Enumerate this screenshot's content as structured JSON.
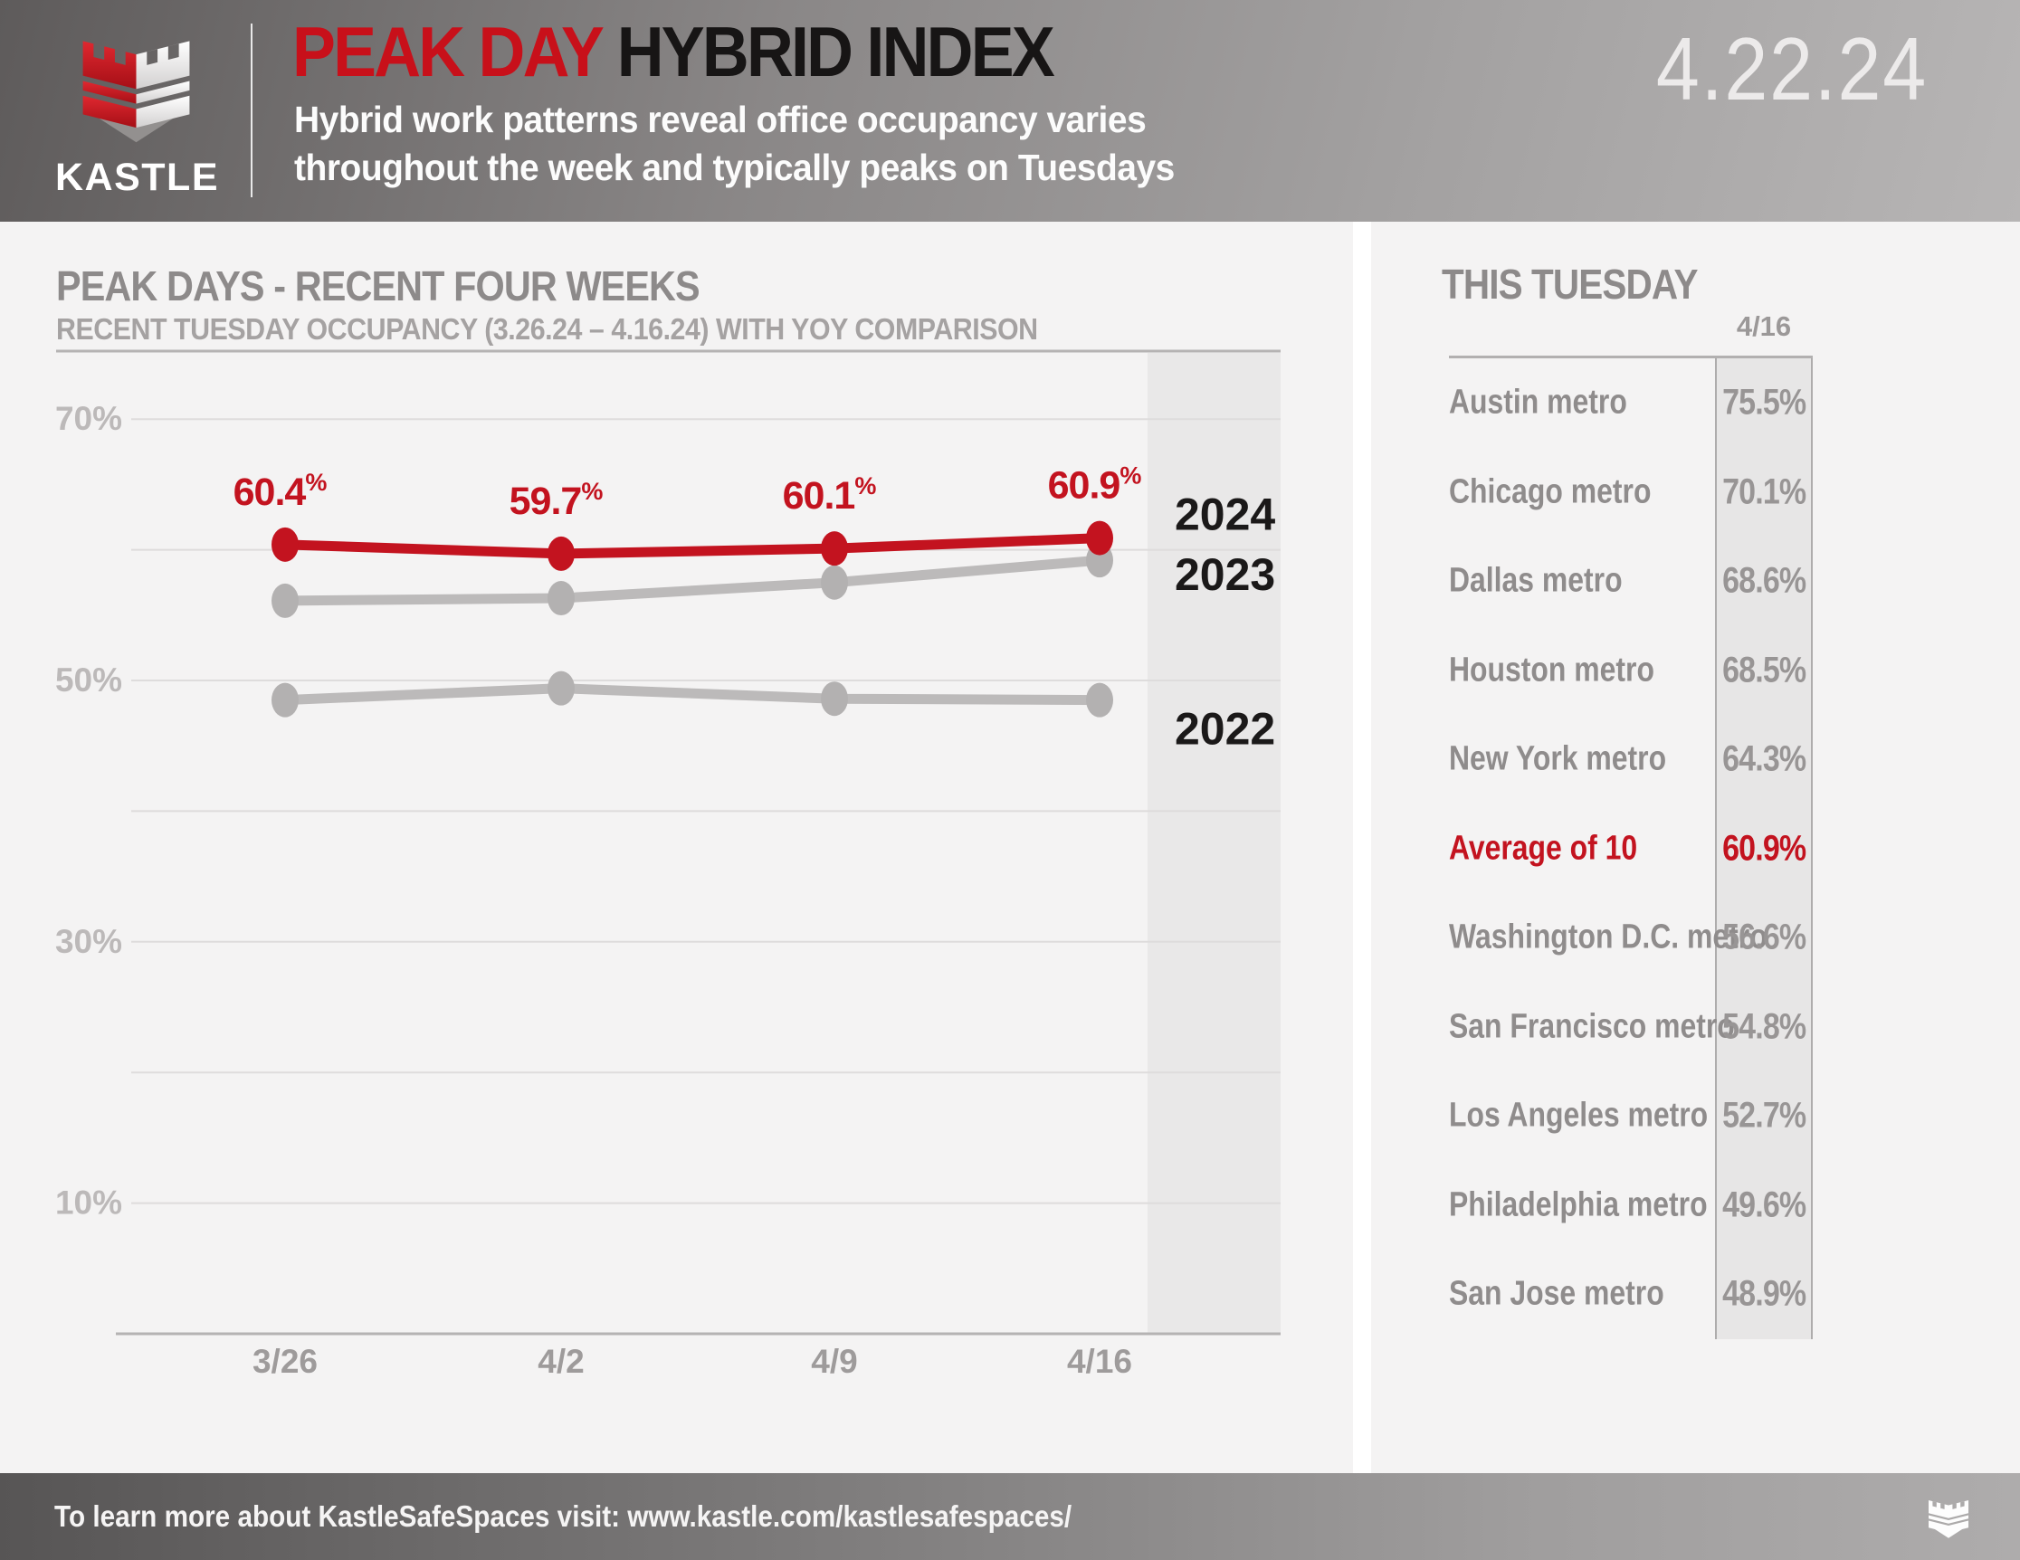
{
  "header": {
    "brand": "KASTLE",
    "title_red": "PEAK DAY",
    "title_dark": "HYBRID INDEX",
    "subtitle_line1": "Hybrid work patterns reveal office occupancy varies",
    "subtitle_line2": "throughout the week and typically peaks on Tuesdays",
    "date": "4.22.24"
  },
  "chart_data": [
    {
      "type": "line",
      "title": "PEAK DAYS - RECENT FOUR WEEKS",
      "subtitle": "RECENT TUESDAY OCCUPANCY (3.26.24 – 4.16.24) WITH YOY COMPARISON",
      "x": [
        "3/26",
        "4/2",
        "4/9",
        "4/16"
      ],
      "unit": "%",
      "ylim": [
        0,
        77
      ],
      "yticks": [
        70,
        50,
        30,
        10
      ],
      "gridlines": [
        70,
        60,
        50,
        40,
        30,
        20,
        10
      ],
      "grid": true,
      "highlight_x": "4/16",
      "legend_position": "right-band",
      "series": [
        {
          "name": "2024",
          "color": "#c3131f",
          "values": [
            60.4,
            59.7,
            60.1,
            60.9
          ],
          "point_labels": [
            "60.4",
            "59.7",
            "60.1",
            "60.9"
          ],
          "labeled": true
        },
        {
          "name": "2023",
          "color": "#bcbaba",
          "values": [
            56.1,
            56.3,
            57.5,
            59.2
          ],
          "labeled": false
        },
        {
          "name": "2022",
          "color": "#bcbaba",
          "values": [
            48.5,
            49.4,
            48.6,
            48.5
          ],
          "labeled": false
        }
      ]
    },
    {
      "type": "table",
      "title": "THIS TUESDAY",
      "column_header": "4/16",
      "rows": [
        {
          "label": "Austin metro",
          "value": "75.5%",
          "highlight": false
        },
        {
          "label": "Chicago metro",
          "value": "70.1%",
          "highlight": false
        },
        {
          "label": "Dallas metro",
          "value": "68.6%",
          "highlight": false
        },
        {
          "label": "Houston metro",
          "value": "68.5%",
          "highlight": false
        },
        {
          "label": "New York metro",
          "value": "64.3%",
          "highlight": false
        },
        {
          "label": "Average of 10",
          "value": "60.9%",
          "highlight": true
        },
        {
          "label": "Washington D.C. metro",
          "value": "56.6%",
          "highlight": false
        },
        {
          "label": "San Francisco metro",
          "value": "54.8%",
          "highlight": false
        },
        {
          "label": "Los Angeles metro",
          "value": "52.7%",
          "highlight": false
        },
        {
          "label": "Philadelphia metro",
          "value": "49.6%",
          "highlight": false
        },
        {
          "label": "San Jose metro",
          "value": "48.9%",
          "highlight": false
        }
      ]
    }
  ],
  "footer": {
    "text": "To learn more about KastleSafeSpaces visit: www.kastle.com/kastlesafespaces/"
  },
  "colors": {
    "accent_red": "#c3131f",
    "title_red": "#c8101a",
    "panel_bg": "#f4f3f3",
    "highlight_band": "#e9e8e8",
    "grid_line": "#dedcdc",
    "axis_line": "#b5b3b3",
    "gray_series": "#bcbaba"
  }
}
